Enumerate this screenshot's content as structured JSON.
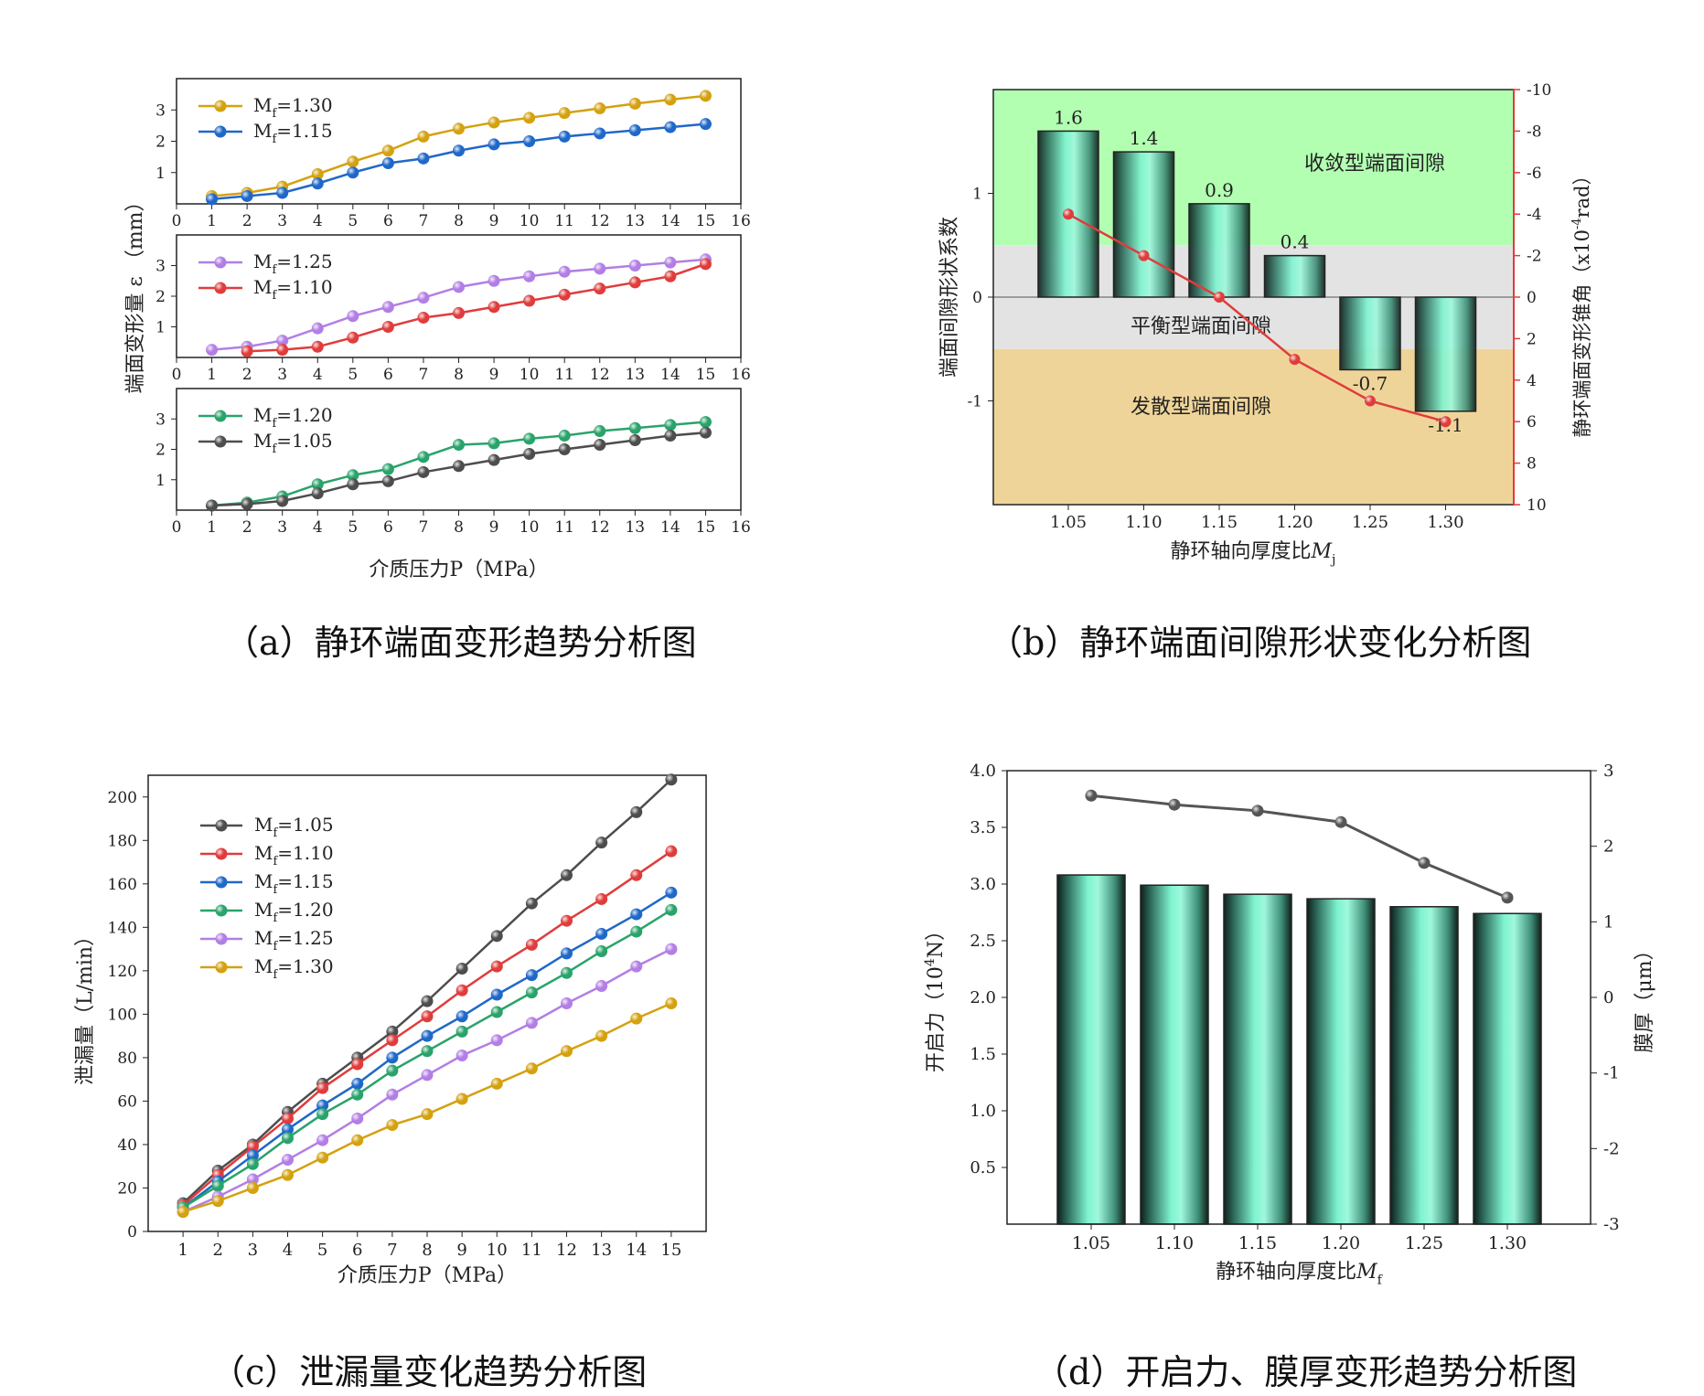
{
  "captions": {
    "a": "（a）静环端面变形趋势分析图",
    "b": "（b）静环端面间隙形状变化分析图",
    "c": "（c）泄漏量变化趋势分析图",
    "d": "（d）开启力、膜厚变形趋势分析图"
  },
  "colors": {
    "1.05": "#4d4d4d",
    "1.10": "#e03c3c",
    "1.15": "#1f68c9",
    "1.20": "#29a36a",
    "1.25": "#b27ee6",
    "1.30": "#d4a10f",
    "zone_convergent": "#b2ffb2",
    "zone_balanced": "#e3e3e3",
    "zone_divergent": "#efd49a",
    "bar_fill": "#7ff3cf",
    "right_axis": "#e03c3c"
  },
  "chart_data": [
    {
      "id": "a",
      "type": "line",
      "title": "静环端面变形趋势分析图",
      "ylabel": "端面变形量 ε （mm）",
      "xlabel": "介质压力P（MPa）",
      "panels": [
        {
          "xlim": [
            0,
            16
          ],
          "xticks": [
            0,
            1,
            2,
            3,
            4,
            5,
            6,
            7,
            8,
            9,
            10,
            11,
            12,
            13,
            14,
            15,
            16
          ],
          "ylim": [
            0,
            4
          ],
          "yticks": [
            1,
            2,
            3
          ],
          "series": [
            {
              "name": "1.30",
              "label_prefix": "M",
              "label_sub": "f",
              "label_value": "=1.30",
              "x": [
                1,
                2,
                3,
                4,
                5,
                6,
                7,
                8,
                9,
                10,
                11,
                12,
                13,
                14,
                15
              ],
              "values": [
                0.25,
                0.35,
                0.55,
                0.95,
                1.35,
                1.7,
                2.15,
                2.4,
                2.6,
                2.75,
                2.9,
                3.05,
                3.2,
                3.33,
                3.45
              ]
            },
            {
              "name": "1.15",
              "label_prefix": "M",
              "label_sub": "f",
              "label_value": "=1.15",
              "x": [
                1,
                2,
                3,
                4,
                5,
                6,
                7,
                8,
                9,
                10,
                11,
                12,
                13,
                14,
                15
              ],
              "values": [
                0.15,
                0.25,
                0.35,
                0.65,
                1.0,
                1.3,
                1.45,
                1.7,
                1.9,
                2.0,
                2.15,
                2.25,
                2.35,
                2.45,
                2.55
              ]
            }
          ]
        },
        {
          "xlim": [
            0,
            16
          ],
          "xticks": [
            0,
            1,
            2,
            3,
            4,
            5,
            6,
            7,
            8,
            9,
            10,
            11,
            12,
            13,
            14,
            15,
            16
          ],
          "ylim": [
            0,
            4
          ],
          "yticks": [
            1,
            2,
            3
          ],
          "series": [
            {
              "name": "1.25",
              "label_prefix": "M",
              "label_sub": "f",
              "label_value": "=1.25",
              "x": [
                1,
                2,
                3,
                4,
                5,
                6,
                7,
                8,
                9,
                10,
                11,
                12,
                13,
                14,
                15
              ],
              "values": [
                0.25,
                0.35,
                0.55,
                0.95,
                1.35,
                1.65,
                1.95,
                2.3,
                2.5,
                2.65,
                2.8,
                2.9,
                3.0,
                3.1,
                3.2
              ]
            },
            {
              "name": "1.10",
              "label_prefix": "M",
              "label_sub": "f",
              "label_value": "=1.10",
              "x": [
                2,
                3,
                4,
                5,
                6,
                7,
                8,
                9,
                10,
                11,
                12,
                13,
                14,
                15
              ],
              "values": [
                0.2,
                0.25,
                0.35,
                0.65,
                1.0,
                1.3,
                1.45,
                1.65,
                1.85,
                2.05,
                2.25,
                2.45,
                2.65,
                3.05
              ]
            }
          ]
        },
        {
          "xlim": [
            0,
            16
          ],
          "xticks": [
            0,
            1,
            2,
            3,
            4,
            5,
            6,
            7,
            8,
            9,
            10,
            11,
            12,
            13,
            14,
            15,
            16
          ],
          "ylim": [
            0,
            4
          ],
          "yticks": [
            1,
            2,
            3
          ],
          "series": [
            {
              "name": "1.20",
              "label_prefix": "M",
              "label_sub": "f",
              "label_value": "=1.20",
              "x": [
                1,
                2,
                3,
                4,
                5,
                6,
                7,
                8,
                9,
                10,
                11,
                12,
                13,
                14,
                15
              ],
              "values": [
                0.15,
                0.25,
                0.45,
                0.85,
                1.15,
                1.35,
                1.75,
                2.15,
                2.2,
                2.35,
                2.45,
                2.6,
                2.7,
                2.8,
                2.9
              ]
            },
            {
              "name": "1.05",
              "label_prefix": "M",
              "label_sub": "f",
              "label_value": "=1.05",
              "x": [
                1,
                2,
                3,
                4,
                5,
                6,
                7,
                8,
                9,
                10,
                11,
                12,
                13,
                14,
                15
              ],
              "values": [
                0.15,
                0.2,
                0.3,
                0.55,
                0.85,
                0.95,
                1.25,
                1.45,
                1.65,
                1.85,
                2.0,
                2.15,
                2.3,
                2.45,
                2.55
              ]
            }
          ]
        }
      ],
      "panel2_xtick_labels": [
        "0",
        "1",
        "2",
        "3",
        "4",
        "5",
        "6",
        "7",
        "8",
        "9",
        "10",
        "11",
        "12",
        "13",
        "14",
        "15",
        "16"
      ]
    },
    {
      "id": "b",
      "type": "bar",
      "title": "静环端面间隙形状变化分析图",
      "categories": [
        "1.05",
        "1.10",
        "1.15",
        "1.20",
        "1.25",
        "1.30"
      ],
      "values": [
        1.6,
        1.4,
        0.9,
        0.4,
        -0.7,
        -1.1
      ],
      "value_labels": [
        "1.6",
        "1.4",
        "0.9",
        "0.4",
        "-0.7",
        "-1.1"
      ],
      "ylim": [
        -2,
        2
      ],
      "yticks": [
        -1,
        0,
        1
      ],
      "ylabel": "端面间隙形状系数",
      "xlabel_prefix": "静环轴向厚度比",
      "xlabel_var": "M",
      "xlabel_sub": "j",
      "zones": [
        {
          "label": "收敛型端面间隙",
          "from": 0.5,
          "to": 2
        },
        {
          "label": "平衡型端面间隙",
          "from": -0.5,
          "to": 0.5
        },
        {
          "label": "发散型端面间隙",
          "from": -2,
          "to": -0.5
        }
      ],
      "right_axis": {
        "label_prefix": "静环端面变形锥角（x10",
        "label_exp": "-4",
        "label_suffix": "rad）",
        "ylim_top": -10,
        "ylim_bottom": 10,
        "ticks": [
          "-10",
          "-8",
          "-6",
          "-4",
          "-2",
          "0",
          "2",
          "4",
          "6",
          "8",
          "10"
        ],
        "tick_values": [
          -10,
          -8,
          -6,
          -4,
          -2,
          0,
          2,
          4,
          6,
          8,
          10
        ],
        "series_values": [
          -4.0,
          -2.0,
          0.0,
          3.0,
          5.0,
          6.0
        ]
      }
    },
    {
      "id": "c",
      "type": "line",
      "title": "泄漏量变化趋势分析图",
      "xlabel": "介质压力P（MPa）",
      "ylabel": "泄漏量（L/min）",
      "x": [
        1,
        2,
        3,
        4,
        5,
        6,
        7,
        8,
        9,
        10,
        11,
        12,
        13,
        14,
        15
      ],
      "xlim": [
        0,
        16
      ],
      "ylim": [
        0,
        210
      ],
      "yticks": [
        0,
        20,
        40,
        60,
        80,
        100,
        120,
        140,
        160,
        180,
        200
      ],
      "series": [
        {
          "name": "1.05",
          "label_prefix": "M",
          "label_sub": "f",
          "label_value": "=1.05",
          "values": [
            13,
            28,
            40,
            55,
            68,
            80,
            92,
            106,
            121,
            136,
            151,
            164,
            179,
            193,
            208
          ]
        },
        {
          "name": "1.10",
          "label_prefix": "M",
          "label_sub": "f",
          "label_value": "=1.10",
          "values": [
            12,
            26,
            39,
            52,
            66,
            77,
            88,
            99,
            111,
            122,
            132,
            143,
            153,
            164,
            175
          ]
        },
        {
          "name": "1.15",
          "label_prefix": "M",
          "label_sub": "f",
          "label_value": "=1.15",
          "values": [
            11,
            23,
            35,
            47,
            58,
            68,
            80,
            90,
            99,
            109,
            118,
            128,
            137,
            146,
            156
          ]
        },
        {
          "name": "1.20",
          "label_prefix": "M",
          "label_sub": "f",
          "label_value": "=1.20",
          "values": [
            11,
            21,
            31,
            43,
            54,
            63,
            74,
            83,
            92,
            101,
            110,
            119,
            129,
            138,
            148
          ]
        },
        {
          "name": "1.25",
          "label_prefix": "M",
          "label_sub": "f",
          "label_value": "=1.25",
          "values": [
            9,
            16,
            24,
            33,
            42,
            52,
            63,
            72,
            81,
            88,
            96,
            105,
            113,
            122,
            130
          ]
        },
        {
          "name": "1.30",
          "label_prefix": "M",
          "label_sub": "f",
          "label_value": "=1.30",
          "values": [
            9,
            14,
            20,
            26,
            34,
            42,
            49,
            54,
            61,
            68,
            75,
            83,
            90,
            98,
            105
          ]
        }
      ]
    },
    {
      "id": "d",
      "type": "bar",
      "title": "开启力、膜厚变形趋势分析图",
      "categories": [
        "1.05",
        "1.10",
        "1.15",
        "1.20",
        "1.25",
        "1.30"
      ],
      "values": [
        3.08,
        2.99,
        2.91,
        2.87,
        2.8,
        2.74
      ],
      "ylim": [
        0,
        4.0
      ],
      "yticks": [
        "0.5",
        "1.0",
        "1.5",
        "2.0",
        "2.5",
        "3.0",
        "3.5",
        "4.0"
      ],
      "ylabel_prefix": "开启力（10",
      "ylabel_exp": "4",
      "ylabel_suffix": "N）",
      "xlabel_prefix": "静环轴向厚度比",
      "xlabel_var": "M",
      "xlabel_sub": "f",
      "right_axis": {
        "label": "膜厚（μm）",
        "ylim": [
          -3,
          3
        ],
        "ticks": [
          "-3",
          "-2",
          "-1",
          "0",
          "1",
          "2",
          "3"
        ],
        "tick_values": [
          -3,
          -2,
          -1,
          0,
          1,
          2,
          3
        ],
        "series_values": [
          2.67,
          2.55,
          2.47,
          2.32,
          1.78,
          1.32
        ]
      }
    }
  ]
}
